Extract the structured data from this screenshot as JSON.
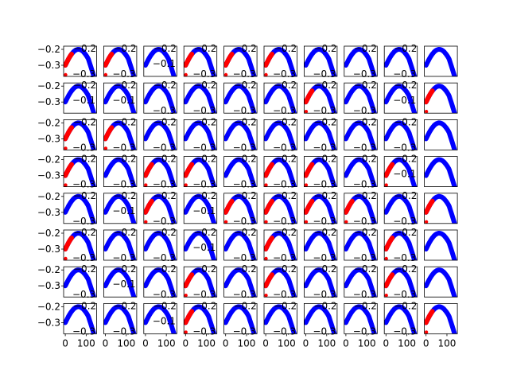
{
  "chart_data": {
    "type": "scatter",
    "layout": {
      "rows": 8,
      "cols": 10
    },
    "subplot_template": {
      "x_range": [
        -8,
        150
      ],
      "y_range": [
        -0.37,
        -0.18
      ],
      "curve": "one arch of a sine wave: starts near -0.30 at x=0, peaks at about -0.20 near x=75, falls to about -0.38 at x=150",
      "series": [
        {
          "name": "",
          "color": "#0000ff",
          "x_start": 0,
          "x_end": 150,
          "marker": "thick dots"
        },
        {
          "name": "",
          "color": "#ff0000",
          "x_start": 0,
          "x_end": 30,
          "marker": "thick dots",
          "note": "red prefix on some panels only"
        }
      ]
    },
    "y_ticks": [
      "−0.2",
      "−0.3"
    ],
    "x_ticks": [
      "0",
      "100"
    ],
    "inset_labels": [
      "−0.2",
      "−0.3",
      "−0.1"
    ],
    "panels": [
      {
        "row": 0,
        "col": 0,
        "red": 1,
        "labels": [
          "−0.2",
          "−0.3"
        ]
      },
      {
        "row": 0,
        "col": 1,
        "red": 1,
        "labels": [
          "−0.2",
          "−0.3"
        ]
      },
      {
        "row": 0,
        "col": 2,
        "red": 0,
        "labels": [
          "−0.2",
          "−0.1"
        ]
      },
      {
        "row": 0,
        "col": 3,
        "red": 1,
        "labels": [
          "−0.2",
          "−0.3"
        ]
      },
      {
        "row": 0,
        "col": 4,
        "red": 1,
        "labels": [
          "−0.2",
          "−0.3"
        ]
      },
      {
        "row": 0,
        "col": 5,
        "red": 1,
        "labels": [
          "−0.2",
          "−0.3"
        ]
      },
      {
        "row": 0,
        "col": 6,
        "red": 0,
        "labels": [
          "−0.2",
          "−0.3"
        ]
      },
      {
        "row": 0,
        "col": 7,
        "red": 0,
        "labels": [
          "−0.2",
          "−0.3"
        ]
      },
      {
        "row": 0,
        "col": 8,
        "red": 0,
        "labels": [
          "−0.2",
          "−0.3"
        ]
      },
      {
        "row": 0,
        "col": 9,
        "red": 0,
        "labels": []
      },
      {
        "row": 1,
        "col": 0,
        "red": 0,
        "labels": [
          "−0.2",
          "−0.1"
        ]
      },
      {
        "row": 1,
        "col": 1,
        "red": 0,
        "labels": [
          "−0.2",
          "−0.1"
        ]
      },
      {
        "row": 1,
        "col": 2,
        "red": 0,
        "labels": [
          "−0.2",
          "−0.3"
        ]
      },
      {
        "row": 1,
        "col": 3,
        "red": 0,
        "labels": [
          "−0.2",
          "−0.3"
        ]
      },
      {
        "row": 1,
        "col": 4,
        "red": 0,
        "labels": [
          "−0.2",
          "−0.3"
        ]
      },
      {
        "row": 1,
        "col": 5,
        "red": 0,
        "labels": [
          "−0.2",
          "−0.3"
        ]
      },
      {
        "row": 1,
        "col": 6,
        "red": 1,
        "labels": [
          "−0.2",
          "−0.3"
        ]
      },
      {
        "row": 1,
        "col": 7,
        "red": 0,
        "labels": [
          "−0.2",
          "−0.3"
        ]
      },
      {
        "row": 1,
        "col": 8,
        "red": 0,
        "labels": [
          "−0.2",
          "−0.1"
        ]
      },
      {
        "row": 1,
        "col": 9,
        "red": 1,
        "labels": []
      },
      {
        "row": 2,
        "col": 0,
        "red": 1,
        "labels": [
          "−0.2",
          "−0.3"
        ]
      },
      {
        "row": 2,
        "col": 1,
        "red": 1,
        "labels": [
          "−0.2",
          "−0.3"
        ]
      },
      {
        "row": 2,
        "col": 2,
        "red": 0,
        "labels": [
          "−0.2",
          "−0.3"
        ]
      },
      {
        "row": 2,
        "col": 3,
        "red": 0,
        "labels": [
          "−0.2",
          "−0.3"
        ]
      },
      {
        "row": 2,
        "col": 4,
        "red": 0,
        "labels": [
          "−0.2",
          "−0.3"
        ]
      },
      {
        "row": 2,
        "col": 5,
        "red": 0,
        "labels": [
          "−0.2",
          "−0.3"
        ]
      },
      {
        "row": 2,
        "col": 6,
        "red": 0,
        "labels": [
          "−0.2",
          "−0.3"
        ]
      },
      {
        "row": 2,
        "col": 7,
        "red": 0,
        "labels": [
          "−0.2",
          "−0.3"
        ]
      },
      {
        "row": 2,
        "col": 8,
        "red": 0,
        "labels": [
          "−0.2",
          "−0.3"
        ]
      },
      {
        "row": 2,
        "col": 9,
        "red": 0,
        "labels": []
      },
      {
        "row": 3,
        "col": 0,
        "red": 1,
        "labels": [
          "−0.2",
          "−0.3"
        ]
      },
      {
        "row": 3,
        "col": 1,
        "red": 0,
        "labels": [
          "−0.2",
          "−0.3"
        ]
      },
      {
        "row": 3,
        "col": 2,
        "red": 1,
        "labels": [
          "−0.2",
          "−0.3"
        ]
      },
      {
        "row": 3,
        "col": 3,
        "red": 1,
        "labels": [
          "−0.2",
          "−0.3"
        ]
      },
      {
        "row": 3,
        "col": 4,
        "red": 0,
        "labels": [
          "−0.2",
          "−0.3"
        ]
      },
      {
        "row": 3,
        "col": 5,
        "red": 1,
        "labels": [
          "−0.2",
          "−0.3"
        ]
      },
      {
        "row": 3,
        "col": 6,
        "red": 1,
        "labels": [
          "−0.2",
          "−0.3"
        ]
      },
      {
        "row": 3,
        "col": 7,
        "red": 0,
        "labels": [
          "−0.2",
          "−0.3"
        ]
      },
      {
        "row": 3,
        "col": 8,
        "red": 1,
        "labels": [
          "−0.2",
          "−0.1"
        ]
      },
      {
        "row": 3,
        "col": 9,
        "red": 0,
        "labels": []
      },
      {
        "row": 4,
        "col": 0,
        "red": 0,
        "labels": [
          "−0.2",
          "−0.3"
        ]
      },
      {
        "row": 4,
        "col": 1,
        "red": 0,
        "labels": [
          "−0.2",
          "−0.1"
        ]
      },
      {
        "row": 4,
        "col": 2,
        "red": 1,
        "labels": [
          "−0.2",
          "−0.3"
        ]
      },
      {
        "row": 4,
        "col": 3,
        "red": 0,
        "labels": [
          "−0.2",
          "−0.1"
        ]
      },
      {
        "row": 4,
        "col": 4,
        "red": 1,
        "labels": [
          "−0.2",
          "−0.3"
        ]
      },
      {
        "row": 4,
        "col": 5,
        "red": 1,
        "labels": [
          "−0.2",
          "−0.3"
        ]
      },
      {
        "row": 4,
        "col": 6,
        "red": 1,
        "labels": [
          "−0.2",
          "−0.3"
        ]
      },
      {
        "row": 4,
        "col": 7,
        "red": 1,
        "labels": [
          "−0.2",
          "−0.3"
        ]
      },
      {
        "row": 4,
        "col": 8,
        "red": 0,
        "labels": [
          "−0.2",
          "−0.3"
        ]
      },
      {
        "row": 4,
        "col": 9,
        "red": 1,
        "labels": []
      },
      {
        "row": 5,
        "col": 0,
        "red": 1,
        "labels": [
          "−0.2",
          "−0.3"
        ]
      },
      {
        "row": 5,
        "col": 1,
        "red": 0,
        "labels": [
          "−0.2",
          "−0.3"
        ]
      },
      {
        "row": 5,
        "col": 2,
        "red": 0,
        "labels": [
          "−0.2",
          "−0.3"
        ]
      },
      {
        "row": 5,
        "col": 3,
        "red": 0,
        "labels": [
          "−0.2",
          "−0.1"
        ]
      },
      {
        "row": 5,
        "col": 4,
        "red": 0,
        "labels": [
          "−0.2",
          "−0.3"
        ]
      },
      {
        "row": 5,
        "col": 5,
        "red": 1,
        "labels": [
          "−0.2",
          "−0.3"
        ]
      },
      {
        "row": 5,
        "col": 6,
        "red": 0,
        "labels": [
          "−0.2",
          "−0.3"
        ]
      },
      {
        "row": 5,
        "col": 7,
        "red": 0,
        "labels": [
          "−0.2",
          "−0.3"
        ]
      },
      {
        "row": 5,
        "col": 8,
        "red": 1,
        "labels": [
          "−0.2",
          "−0.3"
        ]
      },
      {
        "row": 5,
        "col": 9,
        "red": 0,
        "labels": []
      },
      {
        "row": 6,
        "col": 0,
        "red": 0,
        "labels": [
          "−0.2",
          "−0.3"
        ]
      },
      {
        "row": 6,
        "col": 1,
        "red": 0,
        "labels": [
          "−0.2",
          "−0.1"
        ]
      },
      {
        "row": 6,
        "col": 2,
        "red": 0,
        "labels": [
          "−0.2",
          "−0.3"
        ]
      },
      {
        "row": 6,
        "col": 3,
        "red": 1,
        "labels": [
          "−0.2",
          "−0.3"
        ]
      },
      {
        "row": 6,
        "col": 4,
        "red": 0,
        "labels": [
          "−0.2",
          "−0.3"
        ]
      },
      {
        "row": 6,
        "col": 5,
        "red": 1,
        "labels": [
          "−0.2",
          "−0.3"
        ]
      },
      {
        "row": 6,
        "col": 6,
        "red": 0,
        "labels": [
          "−0.2",
          "−0.3"
        ]
      },
      {
        "row": 6,
        "col": 7,
        "red": 0,
        "labels": [
          "−0.2",
          "−0.3"
        ]
      },
      {
        "row": 6,
        "col": 8,
        "red": 1,
        "labels": [
          "−0.2",
          "−0.3"
        ]
      },
      {
        "row": 6,
        "col": 9,
        "red": 0,
        "labels": []
      },
      {
        "row": 7,
        "col": 0,
        "red": 0,
        "labels": [
          "−0.2",
          "−0.3"
        ]
      },
      {
        "row": 7,
        "col": 1,
        "red": 0,
        "labels": [
          "−0.2",
          "−0.3"
        ]
      },
      {
        "row": 7,
        "col": 2,
        "red": 0,
        "labels": [
          "−0.2",
          "−0.1"
        ]
      },
      {
        "row": 7,
        "col": 3,
        "red": 1,
        "labels": [
          "−0.2",
          "−0.3"
        ]
      },
      {
        "row": 7,
        "col": 4,
        "red": 0,
        "labels": [
          "−0.2",
          "−0.3"
        ]
      },
      {
        "row": 7,
        "col": 5,
        "red": 0,
        "labels": [
          "−0.2",
          "−0.3"
        ]
      },
      {
        "row": 7,
        "col": 6,
        "red": 0,
        "labels": [
          "−0.2",
          "−0.3"
        ]
      },
      {
        "row": 7,
        "col": 7,
        "red": 0,
        "labels": [
          "−0.2",
          "−0.3"
        ]
      },
      {
        "row": 7,
        "col": 8,
        "red": 0,
        "labels": [
          "−0.2",
          "−0.3"
        ]
      },
      {
        "row": 7,
        "col": 9,
        "red": 1,
        "labels": []
      }
    ]
  }
}
